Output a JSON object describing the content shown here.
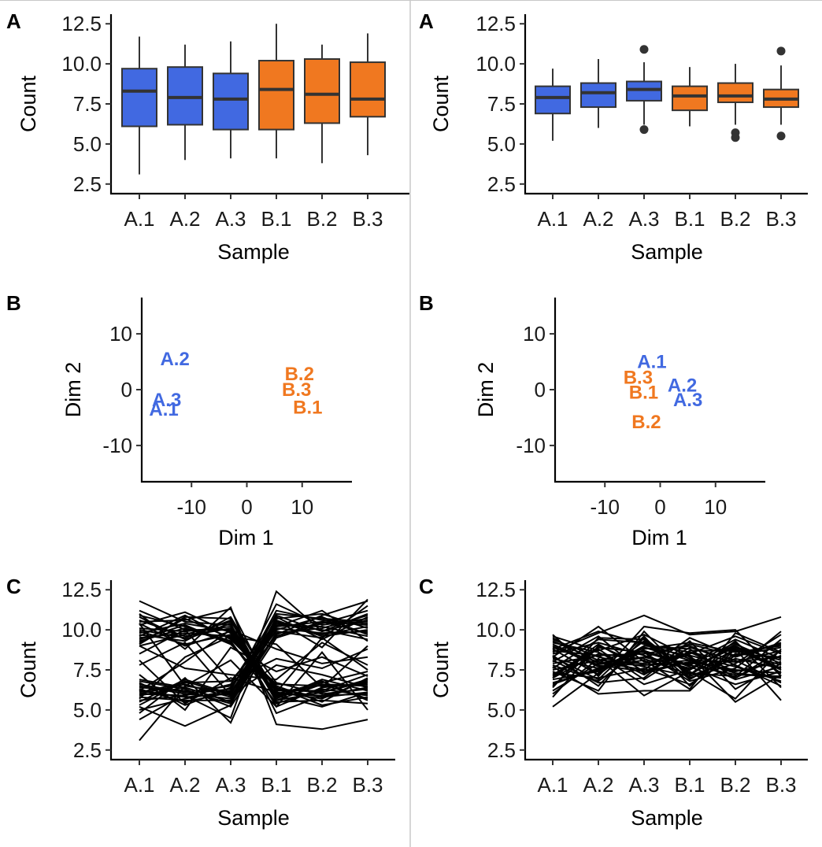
{
  "colors": {
    "A": "#4169E1",
    "B": "#F07820",
    "box_stroke": "#333333",
    "line": "#000000"
  },
  "columns": [
    {
      "box": {
        "letter": "A",
        "xlabel": "Sample",
        "ylabel": "Count",
        "ylim": [
          1.9,
          13.1
        ],
        "yticks": [
          "2.5",
          "5.0",
          "7.5",
          "10.0",
          "12.5"
        ],
        "ytick_values": [
          2.5,
          5.0,
          7.5,
          10.0,
          12.5
        ],
        "categories": [
          "A.1",
          "A.2",
          "A.3",
          "B.1",
          "B.2",
          "B.3"
        ],
        "groups": [
          "A",
          "A",
          "A",
          "B",
          "B",
          "B"
        ],
        "stats": [
          {
            "min": 3.1,
            "q1": 6.1,
            "median": 8.3,
            "q3": 9.7,
            "max": 11.7,
            "outliers": []
          },
          {
            "min": 4.0,
            "q1": 6.2,
            "median": 7.9,
            "q3": 9.8,
            "max": 11.2,
            "outliers": []
          },
          {
            "min": 4.1,
            "q1": 5.9,
            "median": 7.8,
            "q3": 9.4,
            "max": 11.4,
            "outliers": []
          },
          {
            "min": 4.1,
            "q1": 5.9,
            "median": 8.4,
            "q3": 10.2,
            "max": 12.5,
            "outliers": []
          },
          {
            "min": 3.8,
            "q1": 6.3,
            "median": 8.1,
            "q3": 10.3,
            "max": 11.2,
            "outliers": []
          },
          {
            "min": 4.3,
            "q1": 6.7,
            "median": 7.8,
            "q3": 10.1,
            "max": 11.9,
            "outliers": []
          }
        ]
      },
      "scatter": {
        "letter": "B",
        "xlabel": "Dim 1",
        "ylabel": "Dim 2",
        "xlim": [
          -19,
          19
        ],
        "ylim": [
          -16.5,
          16.5
        ],
        "xticks": [
          "-10",
          "0",
          "10"
        ],
        "xtick_values": [
          -10,
          0,
          10
        ],
        "yticks": [
          "-10",
          "0",
          "10"
        ],
        "ytick_values": [
          -10,
          0,
          10
        ],
        "points": [
          {
            "label": "A.2",
            "x": -13.0,
            "y": 5.5,
            "group": "A"
          },
          {
            "label": "A.3",
            "x": -14.5,
            "y": -1.8,
            "group": "A"
          },
          {
            "label": "A.1",
            "x": -15.0,
            "y": -3.5,
            "group": "A"
          },
          {
            "label": "B.2",
            "x": 9.5,
            "y": 2.8,
            "group": "B"
          },
          {
            "label": "B.3",
            "x": 9.0,
            "y": 0.0,
            "group": "B"
          },
          {
            "label": "B.1",
            "x": 11.0,
            "y": -3.2,
            "group": "B"
          }
        ]
      },
      "lines": {
        "letter": "C",
        "xlabel": "Sample",
        "ylabel": "Count",
        "ylim": [
          1.9,
          13.1
        ],
        "yticks": [
          "2.5",
          "5.0",
          "7.5",
          "10.0",
          "12.5"
        ],
        "ytick_values": [
          2.5,
          5.0,
          7.5,
          10.0,
          12.5
        ],
        "categories": [
          "A.1",
          "A.2",
          "A.3",
          "B.1",
          "B.2",
          "B.3"
        ],
        "series": [
          [
            9.5,
            9.8,
            9.6,
            6.0,
            5.9,
            6.4
          ],
          [
            10.1,
            9.9,
            10.2,
            5.6,
            6.1,
            6.8
          ],
          [
            9.8,
            10.4,
            9.9,
            6.3,
            5.8,
            6.1
          ],
          [
            10.6,
            9.6,
            10.1,
            5.9,
            6.6,
            6.5
          ],
          [
            9.2,
            10.7,
            9.5,
            6.5,
            5.5,
            7.0
          ],
          [
            10.9,
            10.2,
            9.3,
            5.4,
            6.3,
            5.9
          ],
          [
            9.7,
            9.3,
            10.8,
            6.1,
            5.7,
            6.9
          ],
          [
            10.3,
            11.1,
            9.8,
            5.8,
            6.8,
            5.6
          ],
          [
            9.0,
            9.7,
            10.5,
            6.7,
            6.0,
            6.3
          ],
          [
            11.2,
            10.0,
            10.0,
            5.2,
            6.4,
            6.7
          ],
          [
            9.9,
            9.1,
            9.7,
            6.4,
            5.3,
            5.8
          ],
          [
            10.5,
            10.6,
            11.3,
            5.7,
            6.9,
            6.2
          ],
          [
            9.4,
            10.3,
            9.1,
            6.2,
            6.2,
            7.2
          ],
          [
            10.8,
            9.4,
            10.4,
            4.8,
            5.9,
            6.0
          ],
          [
            9.6,
            10.9,
            9.4,
            6.6,
            6.5,
            6.6
          ],
          [
            10.0,
            9.5,
            10.6,
            5.5,
            5.6,
            5.4
          ],
          [
            9.3,
            10.1,
            9.2,
            6.0,
            6.7,
            7.4
          ],
          [
            11.8,
            10.5,
            10.3,
            5.9,
            5.2,
            6.1
          ],
          [
            10.4,
            9.0,
            9.9,
            6.3,
            6.1,
            6.9
          ],
          [
            9.1,
            10.8,
            10.7,
            5.6,
            6.6,
            5.7
          ],
          [
            6.2,
            5.8,
            6.0,
            10.2,
            10.5,
            10.3
          ],
          [
            5.9,
            6.4,
            5.5,
            9.8,
            10.1,
            10.9
          ],
          [
            6.5,
            6.0,
            6.3,
            10.6,
            9.6,
            10.0
          ],
          [
            6.0,
            6.6,
            5.8,
            10.0,
            10.8,
            9.7
          ],
          [
            5.6,
            5.9,
            6.6,
            10.9,
            9.9,
            10.6
          ],
          [
            6.8,
            6.3,
            5.2,
            9.5,
            10.4,
            11.2
          ],
          [
            6.3,
            5.5,
            6.1,
            10.4,
            10.0,
            9.4
          ],
          [
            5.3,
            6.8,
            5.9,
            11.2,
            10.6,
            10.4
          ],
          [
            6.6,
            6.1,
            6.5,
            9.9,
            9.5,
            11.5
          ],
          [
            5.8,
            5.6,
            5.6,
            10.7,
            11.0,
            10.1
          ],
          [
            6.1,
            6.7,
            6.8,
            10.1,
            9.8,
            9.9
          ],
          [
            5.0,
            5.7,
            6.2,
            11.6,
            10.3,
            10.7
          ],
          [
            6.4,
            6.2,
            5.4,
            9.7,
            10.9,
            11.8
          ],
          [
            5.5,
            6.9,
            6.0,
            10.5,
            9.7,
            10.2
          ],
          [
            6.7,
            5.3,
            6.4,
            10.3,
            10.2,
            9.6
          ],
          [
            4.4,
            6.0,
            5.7,
            11.0,
            10.7,
            10.5
          ],
          [
            6.0,
            5.9,
            4.5,
            12.4,
            9.9,
            11.0
          ],
          [
            3.1,
            6.5,
            6.1,
            9.6,
            10.5,
            9.8
          ],
          [
            5.2,
            4.0,
            5.3,
            10.8,
            9.4,
            10.8
          ],
          [
            6.9,
            6.4,
            5.5,
            10.2,
            11.2,
            9.3
          ],
          [
            11.0,
            8.8,
            11.4,
            4.1,
            3.8,
            4.4
          ],
          [
            4.8,
            7.0,
            4.2,
            10.6,
            8.9,
            11.9
          ],
          [
            8.5,
            10.0,
            6.8,
            8.2,
            7.6,
            8.8
          ],
          [
            7.2,
            5.0,
            8.9,
            7.4,
            8.3,
            7.1
          ],
          [
            9.0,
            7.6,
            7.2,
            6.9,
            9.2,
            7.8
          ],
          [
            5.7,
            8.3,
            9.6,
            9.1,
            6.4,
            9.0
          ],
          [
            7.8,
            9.2,
            5.9,
            7.8,
            7.2,
            6.4
          ],
          [
            10.4,
            6.5,
            8.1,
            5.2,
            8.6,
            5.0
          ],
          [
            6.2,
            8.0,
            10.0,
            8.8,
            7.9,
            8.3
          ],
          [
            8.1,
            5.4,
            7.0,
            6.1,
            9.5,
            7.5
          ]
        ]
      }
    },
    {
      "box": {
        "letter": "A",
        "xlabel": "Sample",
        "ylabel": "Count",
        "ylim": [
          1.9,
          13.1
        ],
        "yticks": [
          "2.5",
          "5.0",
          "7.5",
          "10.0",
          "12.5"
        ],
        "ytick_values": [
          2.5,
          5.0,
          7.5,
          10.0,
          12.5
        ],
        "categories": [
          "A.1",
          "A.2",
          "A.3",
          "B.1",
          "B.2",
          "B.3"
        ],
        "groups": [
          "A",
          "A",
          "A",
          "B",
          "B",
          "B"
        ],
        "stats": [
          {
            "min": 5.2,
            "q1": 6.9,
            "median": 7.9,
            "q3": 8.6,
            "max": 9.7,
            "outliers": []
          },
          {
            "min": 6.0,
            "q1": 7.3,
            "median": 8.2,
            "q3": 8.8,
            "max": 10.3,
            "outliers": []
          },
          {
            "min": 6.2,
            "q1": 7.7,
            "median": 8.4,
            "q3": 8.9,
            "max": 10.1,
            "outliers": [
              10.9,
              5.9
            ]
          },
          {
            "min": 6.1,
            "q1": 7.1,
            "median": 8.0,
            "q3": 8.6,
            "max": 9.8,
            "outliers": []
          },
          {
            "min": 6.2,
            "q1": 7.6,
            "median": 8.0,
            "q3": 8.8,
            "max": 10.0,
            "outliers": [
              5.7,
              5.4
            ]
          },
          {
            "min": 6.2,
            "q1": 7.3,
            "median": 7.8,
            "q3": 8.4,
            "max": 9.9,
            "outliers": [
              10.8,
              5.5
            ]
          }
        ]
      },
      "scatter": {
        "letter": "B",
        "xlabel": "Dim 1",
        "ylabel": "Dim 2",
        "xlim": [
          -19,
          19
        ],
        "ylim": [
          -16.5,
          16.5
        ],
        "xticks": [
          "-10",
          "0",
          "10"
        ],
        "xtick_values": [
          -10,
          0,
          10
        ],
        "yticks": [
          "-10",
          "0",
          "10"
        ],
        "ytick_values": [
          -10,
          0,
          10
        ],
        "points": [
          {
            "label": "A.1",
            "x": -1.5,
            "y": 5.0,
            "group": "A"
          },
          {
            "label": "A.2",
            "x": 4.0,
            "y": 0.8,
            "group": "A"
          },
          {
            "label": "A.3",
            "x": 5.0,
            "y": -1.8,
            "group": "A"
          },
          {
            "label": "B.3",
            "x": -4.0,
            "y": 2.2,
            "group": "B"
          },
          {
            "label": "B.1",
            "x": -3.0,
            "y": -0.5,
            "group": "B"
          },
          {
            "label": "B.2",
            "x": -2.5,
            "y": -5.8,
            "group": "B"
          }
        ]
      },
      "lines": {
        "letter": "C",
        "xlabel": "Sample",
        "ylabel": "Count",
        "ylim": [
          1.9,
          13.1
        ],
        "yticks": [
          "2.5",
          "5.0",
          "7.5",
          "10.0",
          "12.5"
        ],
        "ytick_values": [
          2.5,
          5.0,
          7.5,
          10.0,
          12.5
        ],
        "categories": [
          "A.1",
          "A.2",
          "A.3",
          "B.1",
          "B.2",
          "B.3"
        ],
        "series": [
          [
            8.2,
            7.6,
            8.9,
            8.1,
            7.4,
            8.0
          ],
          [
            7.0,
            8.5,
            8.2,
            7.2,
            8.8,
            7.5
          ],
          [
            9.1,
            7.8,
            7.4,
            8.6,
            8.0,
            8.7
          ],
          [
            6.5,
            8.9,
            8.6,
            7.8,
            7.2,
            7.1
          ],
          [
            8.8,
            7.2,
            9.3,
            6.9,
            8.5,
            8.3
          ],
          [
            7.5,
            8.1,
            7.9,
            8.4,
            7.7,
            6.8
          ],
          [
            8.5,
            9.2,
            8.4,
            7.5,
            9.1,
            7.9
          ],
          [
            6.9,
            7.4,
            9.0,
            8.8,
            7.0,
            8.4
          ],
          [
            9.4,
            8.3,
            7.7,
            7.1,
            8.2,
            7.6
          ],
          [
            7.8,
            6.8,
            8.8,
            9.2,
            8.6,
            9.0
          ],
          [
            8.0,
            9.6,
            7.3,
            8.0,
            7.5,
            7.3
          ],
          [
            6.2,
            7.9,
            8.3,
            7.6,
            8.9,
            8.1
          ],
          [
            9.6,
            8.7,
            9.7,
            8.3,
            6.9,
            7.7
          ],
          [
            7.3,
            7.0,
            7.6,
            6.6,
            8.4,
            8.9
          ],
          [
            8.7,
            8.4,
            8.5,
            9.0,
            7.8,
            6.5
          ],
          [
            5.8,
            9.0,
            7.8,
            7.9,
            9.4,
            8.2
          ],
          [
            8.4,
            6.5,
            9.5,
            7.3,
            7.1,
            9.4
          ],
          [
            7.1,
            8.8,
            6.9,
            8.7,
            8.7,
            7.8
          ],
          [
            9.0,
            7.7,
            8.1,
            6.3,
            9.8,
            8.6
          ],
          [
            7.6,
            9.4,
            9.2,
            8.2,
            7.3,
            7.0
          ],
          [
            8.9,
            8.0,
            7.5,
            9.5,
            8.3,
            9.2
          ],
          [
            6.7,
            7.5,
            8.7,
            7.7,
            6.6,
            7.4
          ],
          [
            8.3,
            10.2,
            8.0,
            8.5,
            9.6,
            8.5
          ],
          [
            7.4,
            6.2,
            9.9,
            7.0,
            7.9,
            9.7
          ],
          [
            9.2,
            8.6,
            7.2,
            8.9,
            8.1,
            6.7
          ],
          [
            5.2,
            7.3,
            8.9,
            8.4,
            5.5,
            7.2
          ],
          [
            8.6,
            9.8,
            10.9,
            9.7,
            9.9,
            10.8
          ],
          [
            7.7,
            6.0,
            6.2,
            6.2,
            8.8,
            5.6
          ],
          [
            6.0,
            8.2,
            5.9,
            7.4,
            5.7,
            8.8
          ],
          [
            9.7,
            7.1,
            10.2,
            9.8,
            10.0,
            7.1
          ],
          [
            7.2,
            8.9,
            8.6,
            6.8,
            7.6,
            9.9
          ],
          [
            8.1,
            6.7,
            7.0,
            9.3,
            6.3,
            7.9
          ],
          [
            6.4,
            9.5,
            9.4,
            7.2,
            9.3,
            6.4
          ],
          [
            9.5,
            7.9,
            7.8,
            8.1,
            8.0,
            8.3
          ],
          [
            7.9,
            8.4,
            6.6,
            7.5,
            9.0,
            7.5
          ],
          [
            8.8,
            9.9,
            9.1,
            8.6,
            7.4,
            8.0
          ],
          [
            6.6,
            7.6,
            8.3,
            9.1,
            8.4,
            9.1
          ],
          [
            8.3,
            6.9,
            9.6,
            6.5,
            8.9,
            7.6
          ],
          [
            7.0,
            9.1,
            7.4,
            8.0,
            7.0,
            8.7
          ],
          [
            9.3,
            8.1,
            8.7,
            7.8,
            9.2,
            7.3
          ]
        ]
      }
    }
  ]
}
